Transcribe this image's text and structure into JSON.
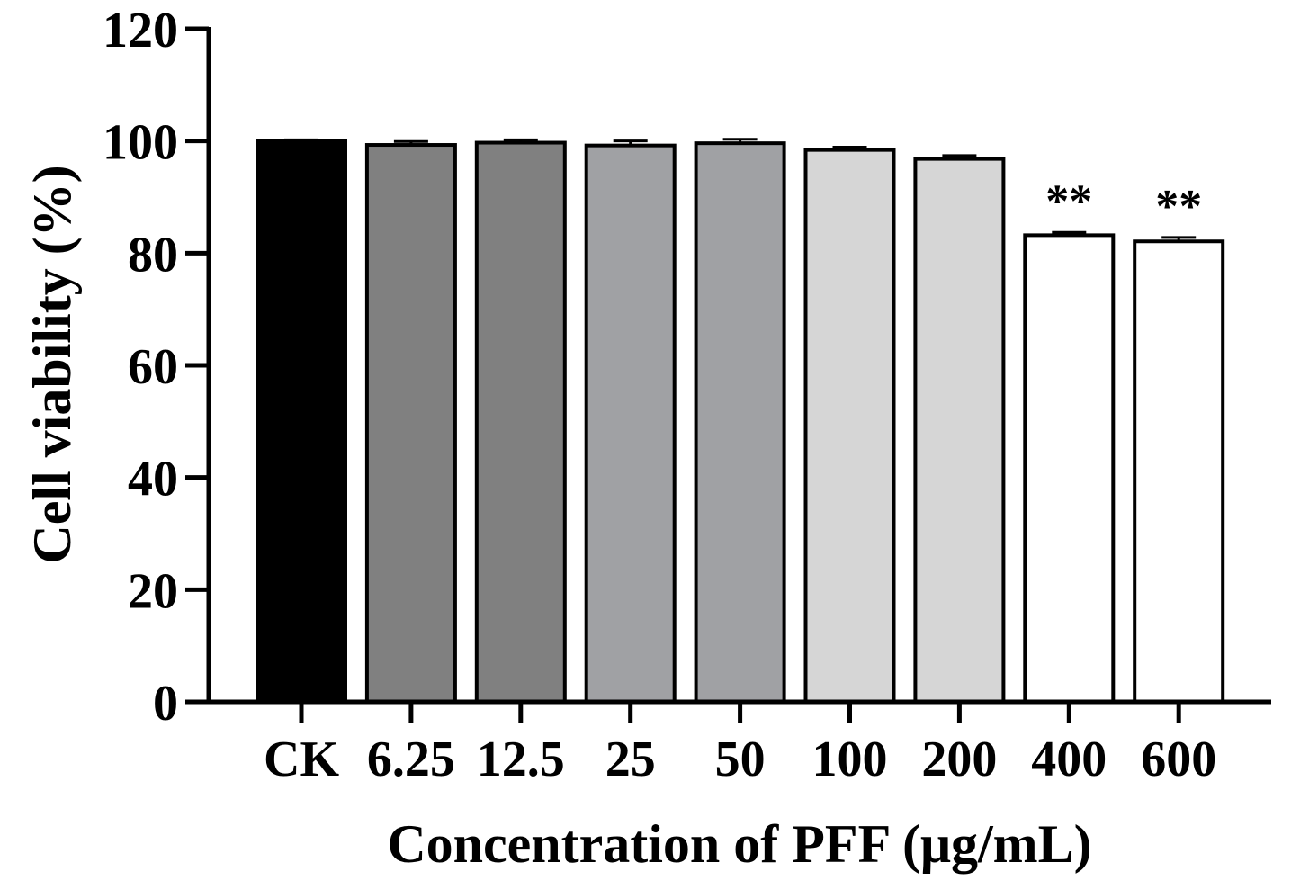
{
  "chart_data": {
    "type": "bar",
    "title": "",
    "xlabel": "Concentration of PFF (μg/mL)",
    "ylabel": "Cell viability (%)",
    "ylim": [
      0,
      120
    ],
    "yticks": [
      0,
      20,
      40,
      60,
      80,
      100,
      120
    ],
    "grid": false,
    "categories": [
      "CK",
      "6.25",
      "12.5",
      "25",
      "50",
      "100",
      "200",
      "400",
      "600"
    ],
    "values": [
      100,
      99.3,
      99.7,
      99.2,
      99.6,
      98.4,
      96.8,
      83.2,
      82.1
    ],
    "errors": [
      0.2,
      0.6,
      0.5,
      0.8,
      0.7,
      0.5,
      0.6,
      0.5,
      0.7
    ],
    "significance": [
      "",
      "",
      "",
      "",
      "",
      "",
      "",
      "**",
      "**"
    ],
    "colors": [
      "#000000",
      "#808080",
      "#808080",
      "#a0a1a4",
      "#a0a1a4",
      "#d6d6d6",
      "#d6d6d6",
      "#ffffff",
      "#ffffff"
    ]
  }
}
